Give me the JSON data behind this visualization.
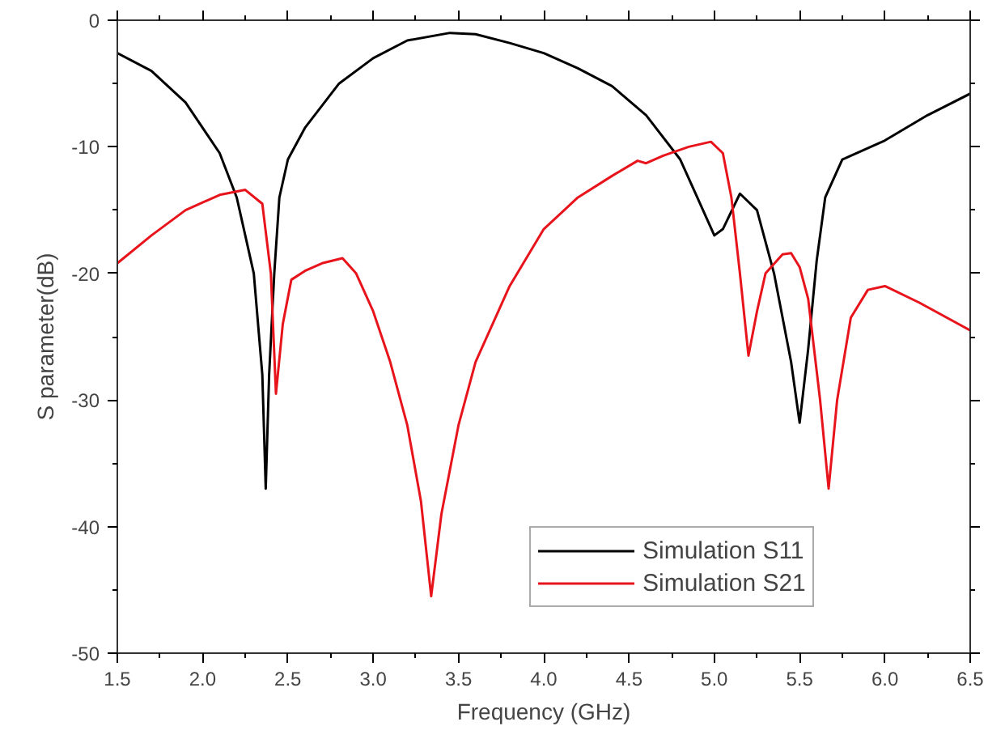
{
  "chart_data": {
    "type": "line",
    "xlabel": "Frequency (GHz)",
    "ylabel": "S parameter(dB)",
    "xlim": [
      1.5,
      6.5
    ],
    "ylim": [
      -50,
      0
    ],
    "xticks": [
      {
        "value": 1.5,
        "label": "1.5"
      },
      {
        "value": 2,
        "label": "2.0"
      },
      {
        "value": 2.5,
        "label": "2.5"
      },
      {
        "value": 3,
        "label": "3.0"
      },
      {
        "value": 3.5,
        "label": "3.5"
      },
      {
        "value": 4,
        "label": "4.0"
      },
      {
        "value": 4.5,
        "label": "4.5"
      },
      {
        "value": 5,
        "label": "5.0"
      },
      {
        "value": 5.5,
        "label": "5.5"
      },
      {
        "value": 6,
        "label": "6.0"
      },
      {
        "value": 6.5,
        "label": "6.5"
      }
    ],
    "yticks": [
      -50,
      -40,
      -30,
      -20,
      -10,
      0
    ],
    "grid": false,
    "legend": "bottom right",
    "marker": "none",
    "line_style": "solid",
    "series": [
      {
        "name": "Simulation S11",
        "color": "#000000",
        "x": [
          1.5,
          1.7,
          1.9,
          2.1,
          2.2,
          2.3,
          2.35,
          2.37,
          2.39,
          2.42,
          2.45,
          2.5,
          2.6,
          2.8,
          3.0,
          3.2,
          3.45,
          3.6,
          3.8,
          4.0,
          4.2,
          4.4,
          4.6,
          4.8,
          4.9,
          5.0,
          5.05,
          5.15,
          5.25,
          5.35,
          5.45,
          5.5,
          5.55,
          5.6,
          5.65,
          5.75,
          6.0,
          6.25,
          6.5
        ],
        "values": [
          -2.6,
          -4,
          -6.5,
          -10.5,
          -14,
          -20,
          -28,
          -37,
          -28,
          -20,
          -14,
          -11,
          -8.5,
          -5,
          -3,
          -1.6,
          -1,
          -1.1,
          -1.8,
          -2.6,
          -3.8,
          -5.2,
          -7.5,
          -11,
          -14,
          -17,
          -16.5,
          -13.7,
          -15,
          -20,
          -27,
          -31.8,
          -26,
          -19,
          -14,
          -11,
          -9.5,
          -7.5,
          -5.8
        ]
      },
      {
        "name": "Simulation S21",
        "color": "#e8141c",
        "x": [
          1.5,
          1.7,
          1.9,
          2.1,
          2.25,
          2.35,
          2.4,
          2.43,
          2.47,
          2.52,
          2.6,
          2.7,
          2.82,
          2.9,
          3.0,
          3.1,
          3.2,
          3.28,
          3.34,
          3.4,
          3.5,
          3.6,
          3.8,
          4.0,
          4.2,
          4.4,
          4.55,
          4.6,
          4.7,
          4.85,
          4.98,
          5.05,
          5.1,
          5.15,
          5.2,
          5.25,
          5.3,
          5.4,
          5.45,
          5.5,
          5.55,
          5.62,
          5.67,
          5.72,
          5.8,
          5.9,
          6.0,
          6.2,
          6.5
        ],
        "values": [
          -19.2,
          -17,
          -15,
          -13.8,
          -13.4,
          -14.5,
          -20,
          -29.5,
          -24,
          -20.5,
          -19.8,
          -19.2,
          -18.8,
          -20,
          -23,
          -27,
          -32,
          -38,
          -45.5,
          -39,
          -32,
          -27,
          -21,
          -16.5,
          -14,
          -12.3,
          -11.1,
          -11.3,
          -10.7,
          -10,
          -9.6,
          -10.5,
          -14,
          -20,
          -26.5,
          -23,
          -20,
          -18.5,
          -18.4,
          -19.5,
          -22,
          -30,
          -37,
          -30,
          -23.5,
          -21.3,
          -21,
          -22.3,
          -24.5
        ]
      }
    ]
  }
}
